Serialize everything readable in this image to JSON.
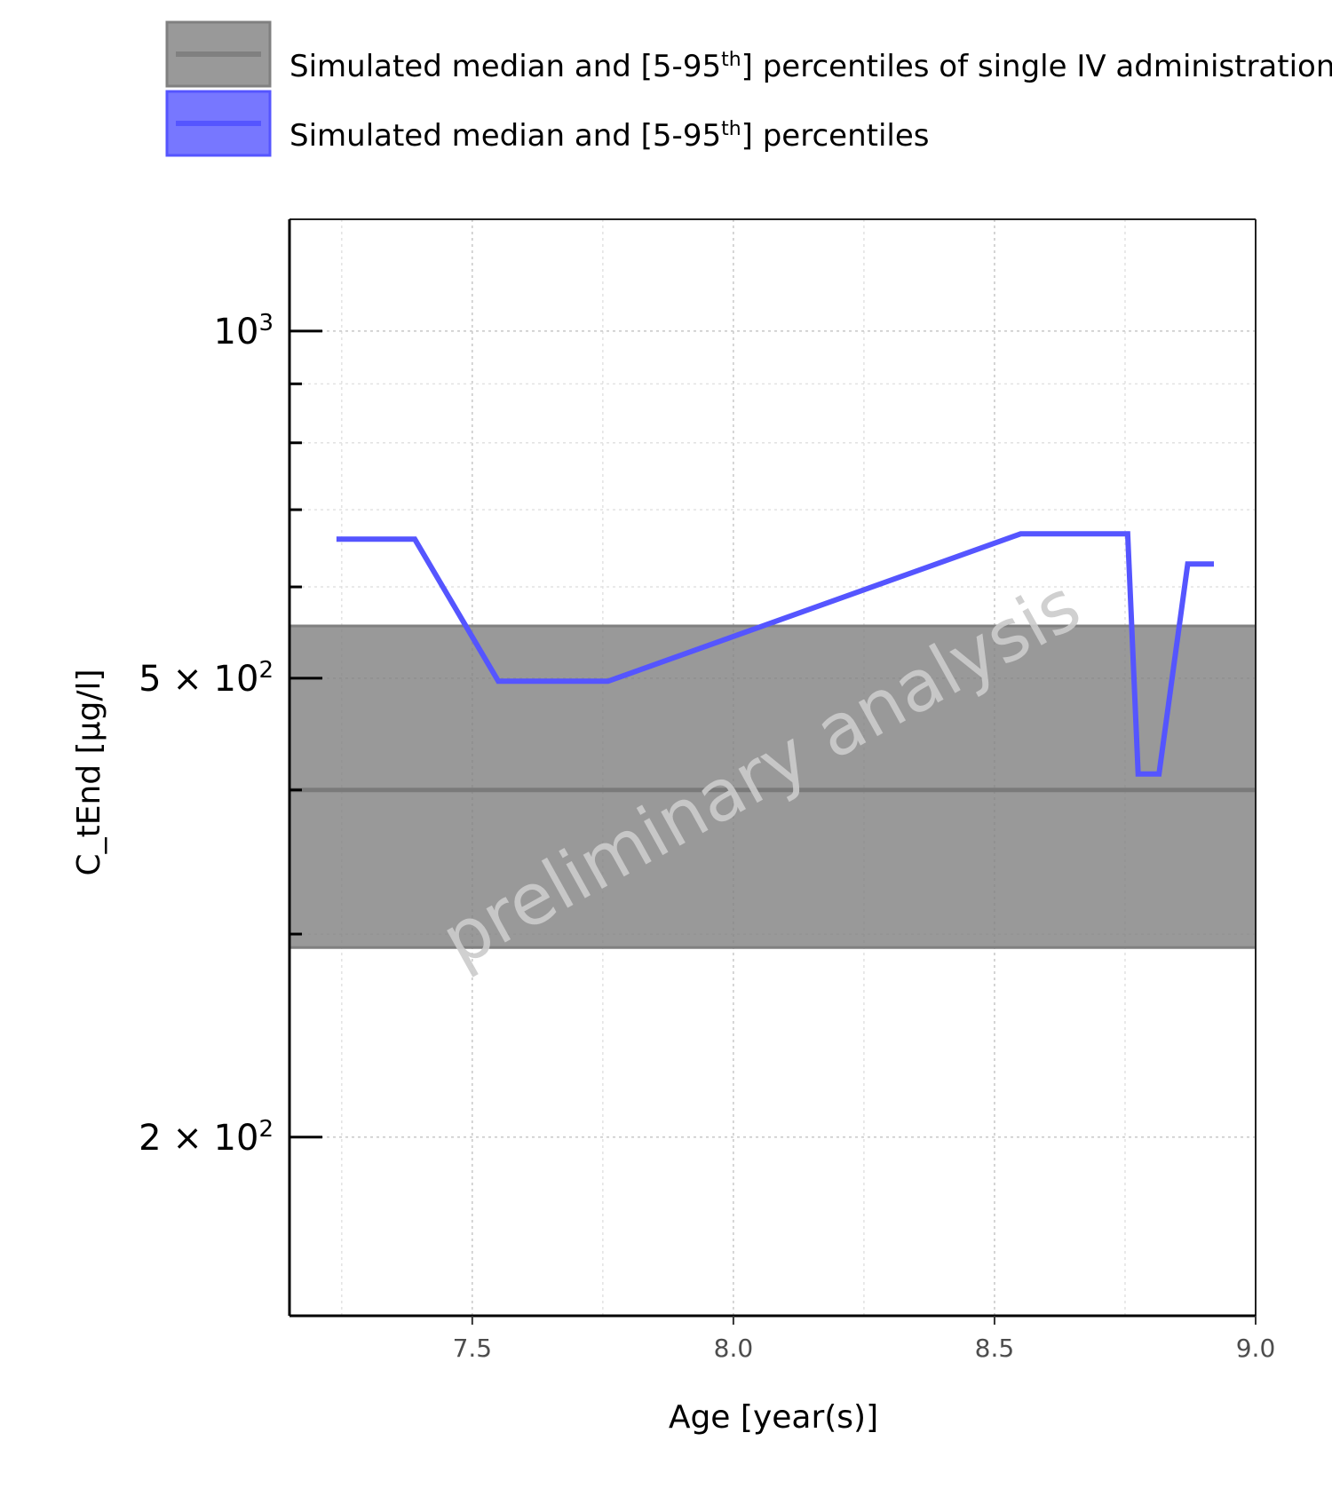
{
  "chart_data": {
    "type": "line",
    "xlabel": "Age [year(s)]",
    "ylabel": "C_tEnd [µg/l]",
    "y_scale": "log",
    "xlim": [
      7.15,
      9.0
    ],
    "ylim": [
      140,
      1250
    ],
    "x_ticks": [
      {
        "value": 7.5,
        "label": "7.5"
      },
      {
        "value": 8.0,
        "label": "8.0"
      },
      {
        "value": 8.5,
        "label": "8.5"
      },
      {
        "value": 9.0,
        "label": "9.0"
      }
    ],
    "y_ticks": [
      {
        "value": 1000,
        "mantissa": "",
        "exponent": "3"
      },
      {
        "value": 500,
        "mantissa": "5 × ",
        "exponent": "2"
      },
      {
        "value": 200,
        "mantissa": "2 × ",
        "exponent": "2"
      }
    ],
    "y_minor_ticks": [
      300,
      400,
      600,
      700,
      800,
      900
    ],
    "grid": true,
    "legend_position": "top",
    "legend": [
      {
        "label_pre": "Simulated median and [5-95",
        "label_sup": "th",
        "label_post": "] percentiles of single IV administration",
        "color": "#808080"
      },
      {
        "label_pre": "Simulated median and [5-95",
        "label_sup": "th",
        "label_post": "] percentiles",
        "color": "#5555ff"
      }
    ],
    "reference_band": {
      "median": 400,
      "lower": 292,
      "upper": 555,
      "color": "#808080"
    },
    "series": [
      {
        "color": "#5555ff",
        "x": [
          7.24,
          7.39,
          7.55,
          7.76,
          8.55,
          8.755,
          8.775,
          8.815,
          8.87,
          8.92
        ],
        "y": [
          660,
          660,
          497,
          497,
          667,
          667,
          413,
          413,
          628,
          628
        ]
      }
    ],
    "watermark": "preliminary analysis"
  }
}
